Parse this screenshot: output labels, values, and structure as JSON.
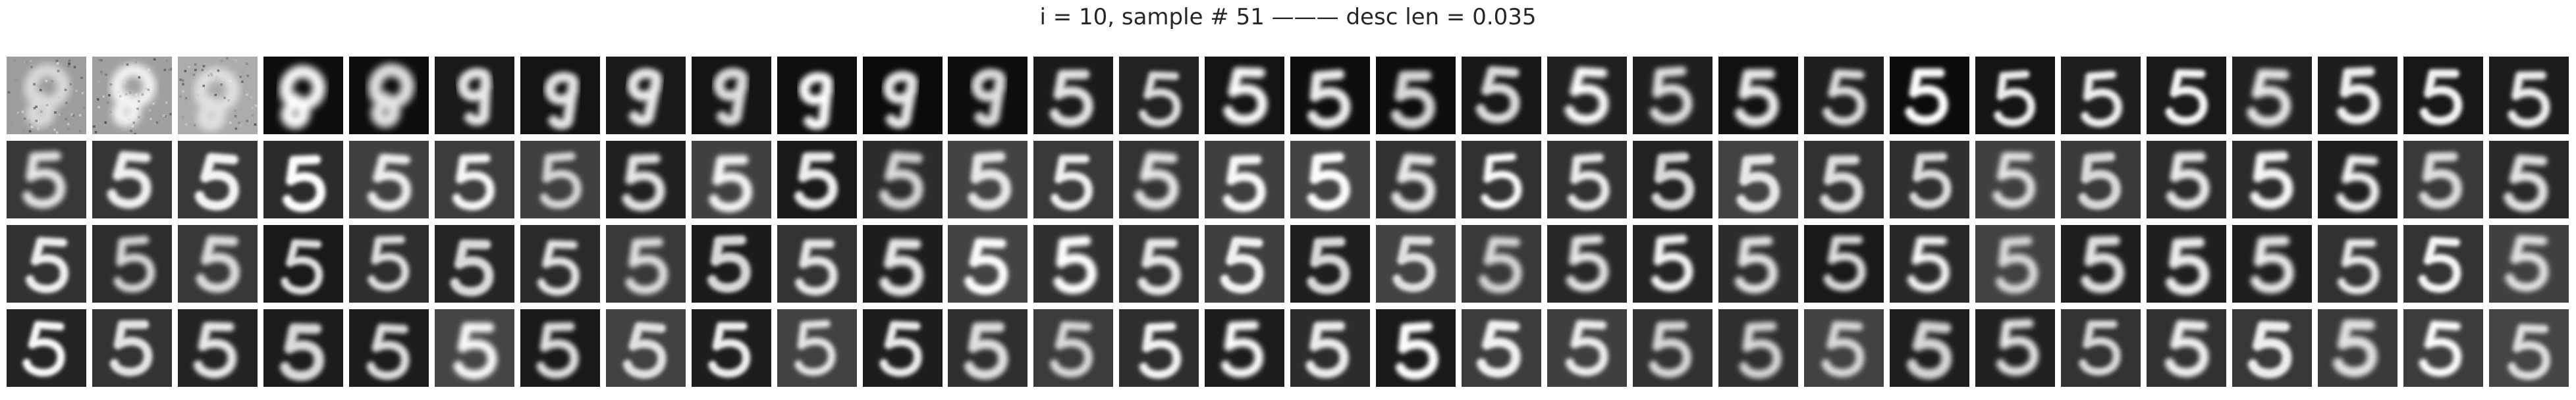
{
  "figure": {
    "title": "i = 10, sample # 51 ——— desc len = 0.035"
  },
  "grid": {
    "rows": 4,
    "columns": 30,
    "content": "grayscale digit reconstructions"
  }
}
